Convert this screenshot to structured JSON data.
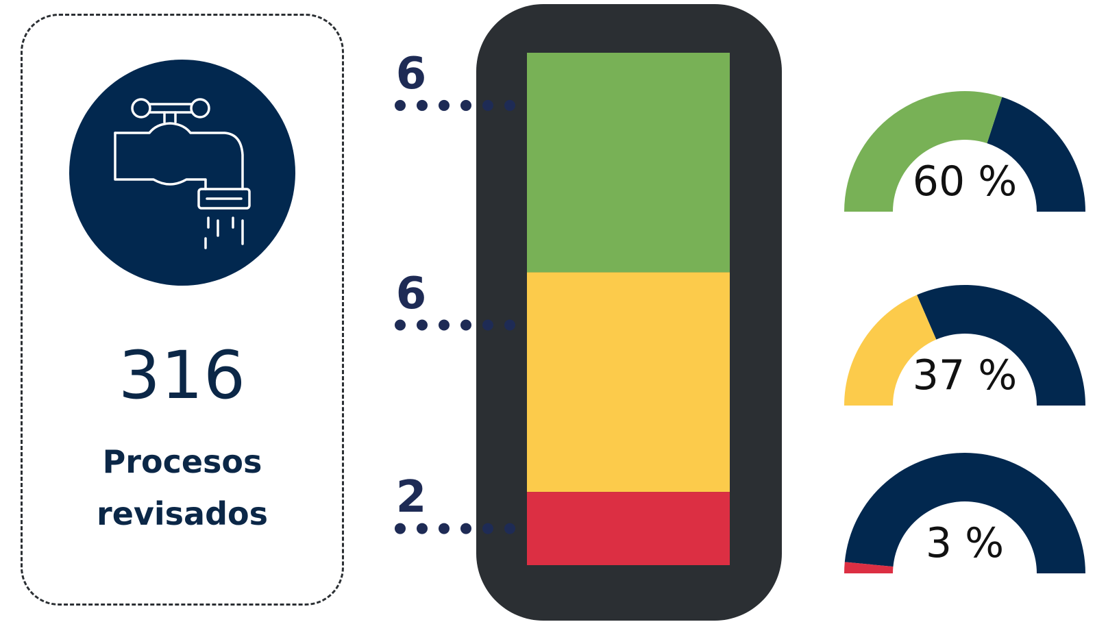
{
  "summary": {
    "count": "316",
    "caption_line1": "Procesos",
    "caption_line2": "revisados",
    "icon": "water-faucet-icon"
  },
  "chart_data": [
    {
      "type": "bar",
      "orientation": "stacked-vertical",
      "categories": [
        "green",
        "yellow",
        "red"
      ],
      "values": [
        6,
        6,
        2
      ],
      "labels": [
        "6",
        "6",
        "2"
      ],
      "colors": [
        "#78b156",
        "#fccb4b",
        "#dc2f43"
      ]
    },
    {
      "type": "pie",
      "style": "semicircle-gauge",
      "gauges": [
        {
          "value": 60,
          "label": "60 %",
          "color": "#78b156"
        },
        {
          "value": 37,
          "label": "37 %",
          "color": "#fccb4b"
        },
        {
          "value": 3,
          "label": "3 %",
          "color": "#dc2f43"
        }
      ],
      "remainder_color": "#02284f"
    }
  ],
  "colors": {
    "navy": "#02284f",
    "dark_frame": "#2b2f33",
    "dots": "#1e2b55"
  }
}
